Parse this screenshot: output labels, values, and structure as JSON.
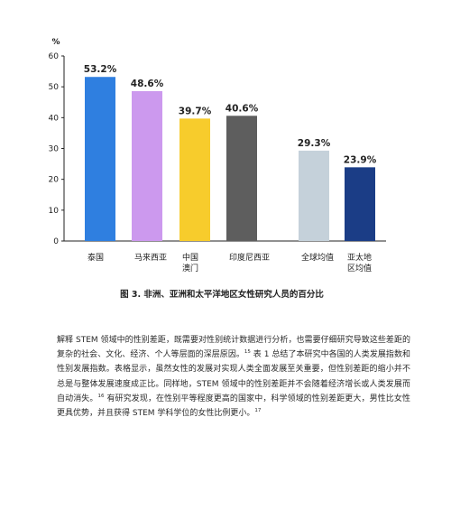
{
  "chart_data": {
    "type": "bar",
    "unit": "%",
    "categories": [
      [
        "泰国"
      ],
      [
        "马来西亚"
      ],
      [
        "中国",
        "澳门"
      ],
      [
        "印度尼西亚"
      ],
      [
        "全球均值"
      ],
      [
        "亚太地",
        "区均值"
      ]
    ],
    "values": [
      53.2,
      48.6,
      39.7,
      40.6,
      29.3,
      23.9
    ],
    "value_labels": [
      "53.2%",
      "48.6%",
      "39.7%",
      "40.6%",
      "29.3%",
      "23.9%"
    ],
    "colors": [
      "#2f7fe0",
      "#cc99ee",
      "#f7cc2c",
      "#5e5e5e",
      "#c5d1da",
      "#1b3d86"
    ],
    "ylim": [
      0,
      60
    ],
    "yticks": [
      0,
      10,
      20,
      30,
      40,
      50,
      60
    ],
    "grid": false
  },
  "caption": "图 3. 非洲、亚洲和太平洋地区女性研究人员的百分比",
  "paragraph": {
    "parts": [
      {
        "text": "解释 STEM 领域中的性别差距，既需要对性别统计数据进行分析，也需要仔细研究导致这些差距的复杂的社会、文化、经济、个人等层面的深层原因。"
      },
      {
        "sup": "15"
      },
      {
        "text": " 表 1 总结了本研究中各国的人类发展指数和性别发展指数。表格显示，虽然女性的发展对实现人类全面发展至关重要，但性别差距的缩小并不总是与整体发展速度成正比。同样地，STEM 领域中的性别差距并不会随着经济增长或人类发展而自动消失。"
      },
      {
        "sup": "16"
      },
      {
        "text": " 有研究发现，在性别平等程度更高的国家中，科学领域的性别差距更大，男性比女性更具优势，并且获得 STEM 学科学位的女性比例更小。"
      },
      {
        "sup": "17"
      }
    ]
  }
}
